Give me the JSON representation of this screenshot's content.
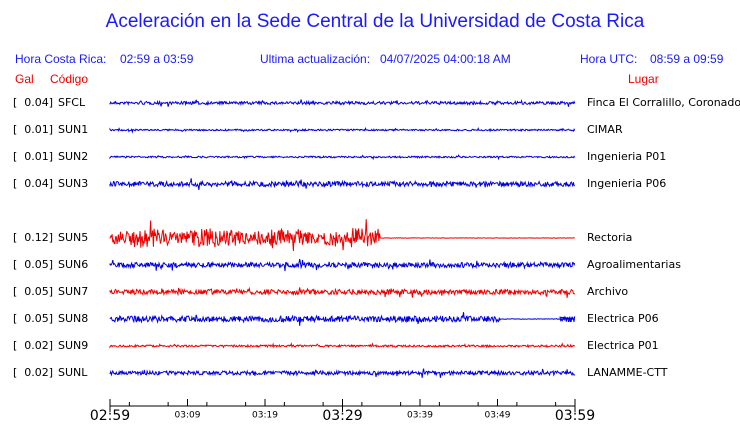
{
  "header": {
    "title": "Aceleración en la Sede Central de la Universidad de Costa Rica",
    "local_label": "Hora Costa Rica:",
    "local_range": "02:59 a 03:59",
    "update_label": "Ultima actualización:",
    "update_time": "04/07/2025 04:00:18 AM",
    "utc_label": "Hora UTC:",
    "utc_range": "08:59 a 09:59"
  },
  "columns": {
    "gal": "Gal",
    "code": "Código",
    "place": "Lugar"
  },
  "stations": [
    {
      "gal": "[  0.04]",
      "code": "SFCL",
      "place": "Finca El Corralillo, Coronado",
      "color": "#0000dd"
    },
    {
      "gal": "[  0.01]",
      "code": "SUN1",
      "place": "CIMAR",
      "color": "#0000dd"
    },
    {
      "gal": "[  0.01]",
      "code": "SUN2",
      "place": "Ingenieria P01",
      "color": "#0000dd"
    },
    {
      "gal": "[  0.04]",
      "code": "SUN3",
      "place": "Ingenieria P06",
      "color": "#0000dd"
    },
    {
      "gal": "[  0.12]",
      "code": "SUN5",
      "place": "Rectoria",
      "color": "#ee0000"
    },
    {
      "gal": "[  0.05]",
      "code": "SUN6",
      "place": "Agroalimentarias",
      "color": "#0000dd"
    },
    {
      "gal": "[  0.05]",
      "code": "SUN7",
      "place": "Archivo",
      "color": "#ee0000"
    },
    {
      "gal": "[  0.05]",
      "code": "SUN8",
      "place": "Electrica P06",
      "color": "#0000dd"
    },
    {
      "gal": "[  0.02]",
      "code": "SUN9",
      "place": "Electrica P01",
      "color": "#ee0000"
    },
    {
      "gal": "[  0.02]",
      "code": "SUNL",
      "place": "LANAMME-CTT",
      "color": "#0000dd"
    }
  ],
  "time_axis": {
    "major": [
      "02:59",
      "03:29",
      "03:59"
    ],
    "minor": [
      "03:09",
      "03:19",
      "03:39",
      "03:49"
    ]
  }
}
